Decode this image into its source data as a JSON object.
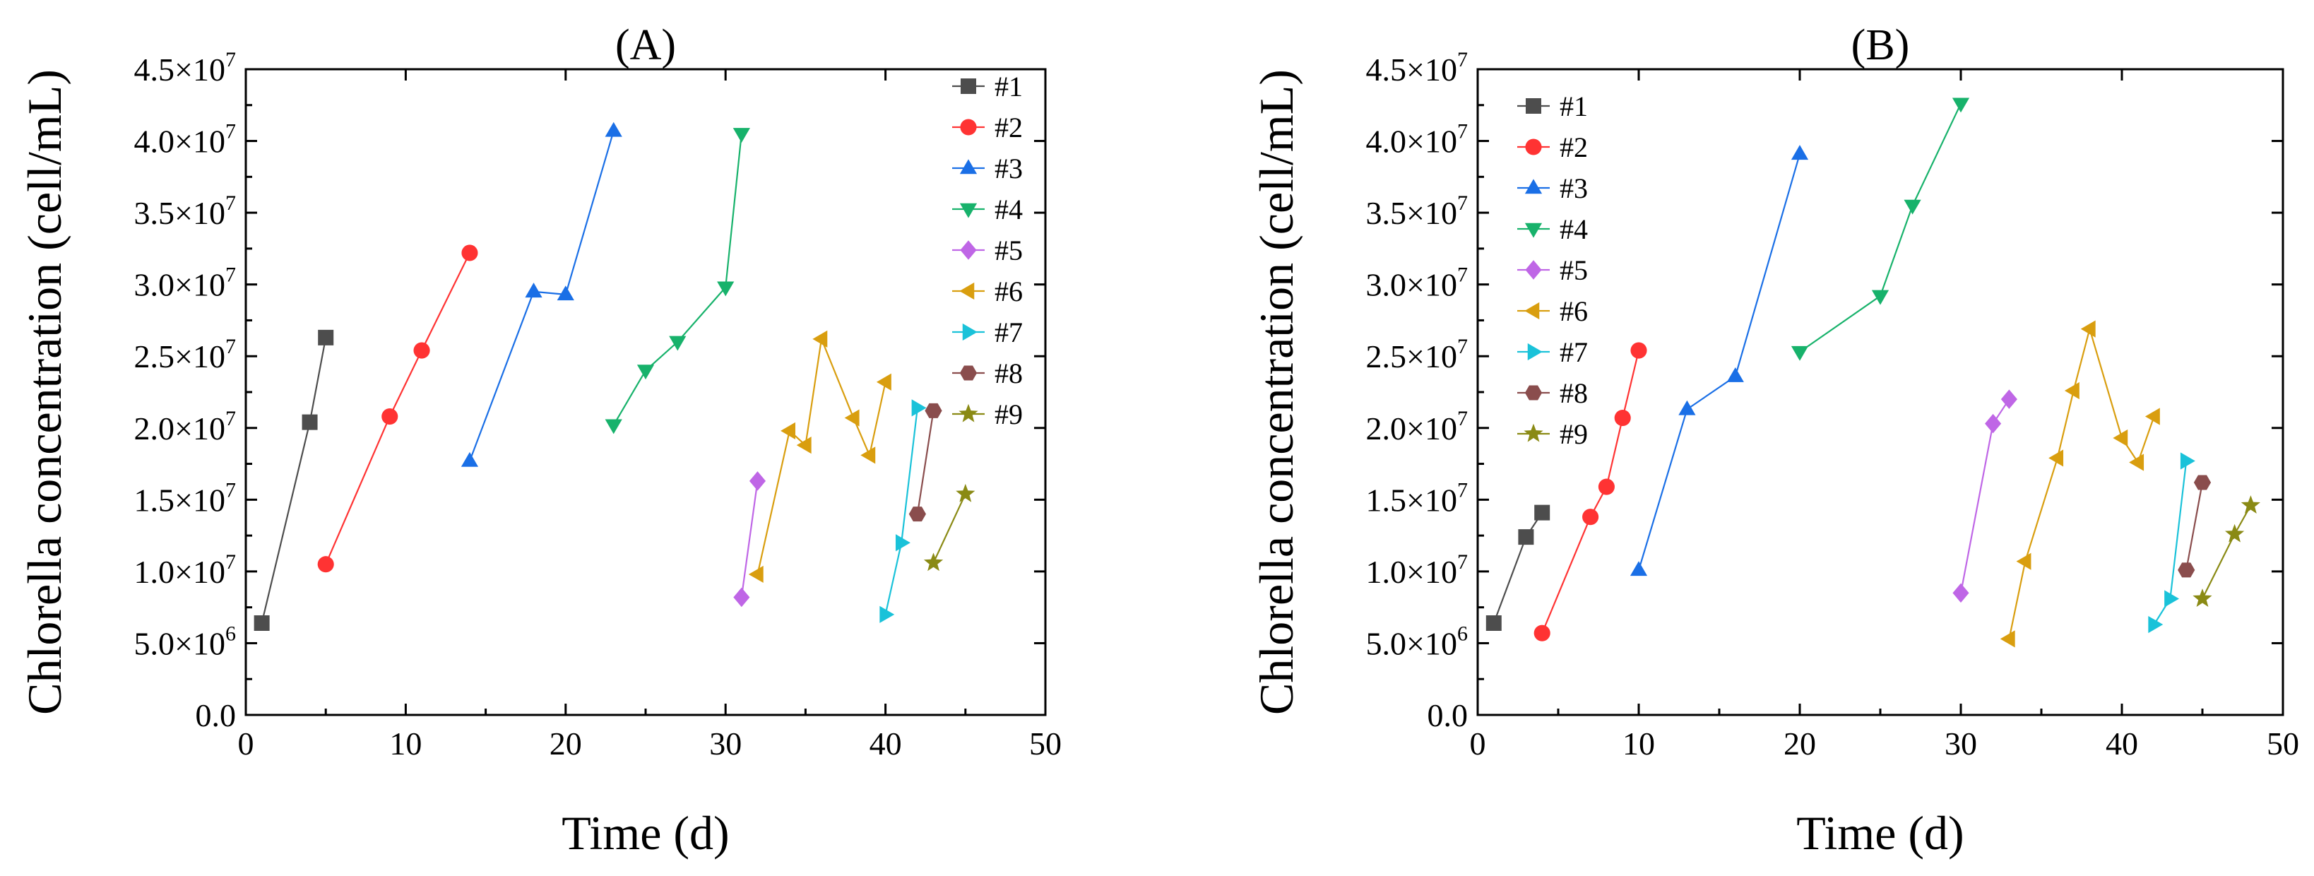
{
  "chart_data": [
    {
      "type": "line",
      "panel": "A",
      "title": "(A)",
      "xlabel": "Time (d)",
      "ylabel": "Chlorella concentration (cell/mL)",
      "xlim": [
        0,
        50
      ],
      "ylim": [
        0,
        45000000
      ],
      "x_ticks": [
        0,
        10,
        20,
        30,
        40,
        50
      ],
      "x_tick_labels": [
        "0",
        "10",
        "20",
        "30",
        "40",
        "50"
      ],
      "y_ticks": [
        0,
        5000000,
        10000000,
        15000000,
        20000000,
        25000000,
        30000000,
        35000000,
        40000000,
        45000000
      ],
      "y_tick_labels": [
        {
          "mantissa": "0.0",
          "exponent": ""
        },
        {
          "mantissa": "5.0×10",
          "exponent": "6"
        },
        {
          "mantissa": "1.0×10",
          "exponent": "7"
        },
        {
          "mantissa": "1.5×10",
          "exponent": "7"
        },
        {
          "mantissa": "2.0×10",
          "exponent": "7"
        },
        {
          "mantissa": "2.5×10",
          "exponent": "7"
        },
        {
          "mantissa": "3.0×10",
          "exponent": "7"
        },
        {
          "mantissa": "3.5×10",
          "exponent": "7"
        },
        {
          "mantissa": "4.0×10",
          "exponent": "7"
        },
        {
          "mantissa": "4.5×10",
          "exponent": "7"
        }
      ],
      "legend_position": "top-right",
      "series": [
        {
          "name": "#1",
          "color": "#4d4d4d",
          "marker": "square",
          "x": [
            1,
            4,
            5
          ],
          "y": [
            6400000,
            20400000,
            26300000
          ]
        },
        {
          "name": "#2",
          "color": "#ff3333",
          "marker": "circle",
          "x": [
            5,
            9,
            11,
            14
          ],
          "y": [
            10500000,
            20800000,
            25400000,
            32200000
          ]
        },
        {
          "name": "#3",
          "color": "#1a6fe6",
          "marker": "triangle-up",
          "x": [
            14,
            18,
            20,
            23
          ],
          "y": [
            17700000,
            29500000,
            29300000,
            40700000
          ]
        },
        {
          "name": "#4",
          "color": "#17b26b",
          "marker": "triangle-down",
          "x": [
            23,
            25,
            27,
            30,
            31
          ],
          "y": [
            20200000,
            24000000,
            26000000,
            29800000,
            40500000
          ]
        },
        {
          "name": "#5",
          "color": "#bf66e6",
          "marker": "diamond",
          "x": [
            31,
            32
          ],
          "y": [
            8200000,
            16300000
          ]
        },
        {
          "name": "#6",
          "color": "#d99e0f",
          "marker": "triangle-left",
          "x": [
            32,
            34,
            35,
            36,
            38,
            39,
            40
          ],
          "y": [
            9800000,
            19800000,
            18800000,
            26200000,
            20700000,
            18100000,
            23200000
          ]
        },
        {
          "name": "#7",
          "color": "#1ac2d9",
          "marker": "triangle-right",
          "x": [
            40,
            41,
            42
          ],
          "y": [
            7000000,
            12000000,
            21400000
          ]
        },
        {
          "name": "#8",
          "color": "#8a4d4d",
          "marker": "hexagon",
          "x": [
            42,
            43
          ],
          "y": [
            14000000,
            21200000
          ]
        },
        {
          "name": "#9",
          "color": "#8a8a14",
          "marker": "star",
          "x": [
            43,
            45
          ],
          "y": [
            10600000,
            15400000
          ]
        }
      ]
    },
    {
      "type": "line",
      "panel": "B",
      "title": "(B)",
      "xlabel": "Time (d)",
      "ylabel": "Chlorella concentration (cell/mL)",
      "xlim": [
        0,
        50
      ],
      "ylim": [
        0,
        45000000
      ],
      "x_ticks": [
        0,
        10,
        20,
        30,
        40,
        50
      ],
      "x_tick_labels": [
        "0",
        "10",
        "20",
        "30",
        "40",
        "50"
      ],
      "y_ticks": [
        0,
        5000000,
        10000000,
        15000000,
        20000000,
        25000000,
        30000000,
        35000000,
        40000000,
        45000000
      ],
      "y_tick_labels": [
        {
          "mantissa": "0.0",
          "exponent": ""
        },
        {
          "mantissa": "5.0×10",
          "exponent": "6"
        },
        {
          "mantissa": "1.0×10",
          "exponent": "7"
        },
        {
          "mantissa": "1.5×10",
          "exponent": "7"
        },
        {
          "mantissa": "2.0×10",
          "exponent": "7"
        },
        {
          "mantissa": "2.5×10",
          "exponent": "7"
        },
        {
          "mantissa": "3.0×10",
          "exponent": "7"
        },
        {
          "mantissa": "3.5×10",
          "exponent": "7"
        },
        {
          "mantissa": "4.0×10",
          "exponent": "7"
        },
        {
          "mantissa": "4.5×10",
          "exponent": "7"
        }
      ],
      "legend_position": "top-left",
      "series": [
        {
          "name": "#1",
          "color": "#4d4d4d",
          "marker": "square",
          "x": [
            1,
            3,
            4
          ],
          "y": [
            6400000,
            12400000,
            14100000
          ]
        },
        {
          "name": "#2",
          "color": "#ff3333",
          "marker": "circle",
          "x": [
            4,
            7,
            8,
            9,
            10
          ],
          "y": [
            5700000,
            13800000,
            15900000,
            20700000,
            25400000
          ]
        },
        {
          "name": "#3",
          "color": "#1a6fe6",
          "marker": "triangle-up",
          "x": [
            10,
            13,
            16,
            20
          ],
          "y": [
            10100000,
            21300000,
            23600000,
            39100000
          ]
        },
        {
          "name": "#4",
          "color": "#17b26b",
          "marker": "triangle-down",
          "x": [
            20,
            25,
            27,
            30
          ],
          "y": [
            25300000,
            29200000,
            35500000,
            42600000
          ]
        },
        {
          "name": "#5",
          "color": "#bf66e6",
          "marker": "diamond",
          "x": [
            30,
            32,
            33
          ],
          "y": [
            8500000,
            20300000,
            22000000
          ]
        },
        {
          "name": "#6",
          "color": "#d99e0f",
          "marker": "triangle-left",
          "x": [
            33,
            34,
            36,
            37,
            38,
            40,
            41,
            42
          ],
          "y": [
            5300000,
            10700000,
            17900000,
            22600000,
            26900000,
            19300000,
            17600000,
            20800000
          ]
        },
        {
          "name": "#7",
          "color": "#1ac2d9",
          "marker": "triangle-right",
          "x": [
            42,
            43,
            44
          ],
          "y": [
            6300000,
            8100000,
            17700000
          ]
        },
        {
          "name": "#8",
          "color": "#8a4d4d",
          "marker": "hexagon",
          "x": [
            44,
            45
          ],
          "y": [
            10100000,
            16200000
          ]
        },
        {
          "name": "#9",
          "color": "#8a8a14",
          "marker": "star",
          "x": [
            45,
            47,
            48
          ],
          "y": [
            8100000,
            12600000,
            14600000
          ]
        }
      ]
    }
  ]
}
